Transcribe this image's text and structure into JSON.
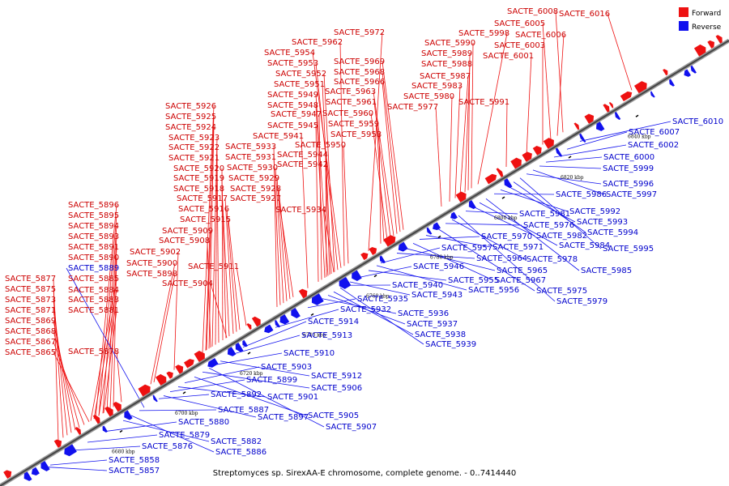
{
  "caption": "Streptomyces sp. SirexAA-E chromosome, complete genome. - 0..7414440",
  "legend": {
    "forward": {
      "label": "Forward",
      "color": "#ee1111"
    },
    "reverse": {
      "label": "Reverse",
      "color": "#1111ee"
    }
  },
  "scale_ticks": [
    "6680 kbp",
    "6700 kbp",
    "6720 kbp",
    "6740 kbp",
    "6760 kbp",
    "6780 kbp",
    "6800 kbp",
    "6820 kbp",
    "6840 kbp"
  ],
  "forward_genes": [
    "SACTE_5865",
    "SACTE_5867",
    "SACTE_5868",
    "SACTE_5869",
    "SACTE_5871",
    "SACTE_5873",
    "SACTE_5875",
    "SACTE_5877",
    "SACTE_5878",
    "SACTE_5881",
    "SACTE_5883",
    "SACTE_5884",
    "SACTE_5885",
    "SACTE_5890",
    "SACTE_5891",
    "SACTE_5893",
    "SACTE_5894",
    "SACTE_5895",
    "SACTE_5896",
    "SACTE_5898",
    "SACTE_5900",
    "SACTE_5902",
    "SACTE_5904",
    "SACTE_5908",
    "SACTE_5909",
    "SACTE_5911",
    "SACTE_5915",
    "SACTE_5916",
    "SACTE_5917",
    "SACTE_5918",
    "SACTE_5919",
    "SACTE_5920",
    "SACTE_5921",
    "SACTE_5922",
    "SACTE_5923",
    "SACTE_5924",
    "SACTE_5925",
    "SACTE_5926",
    "SACTE_5927",
    "SACTE_5928",
    "SACTE_5929",
    "SACTE_5930",
    "SACTE_5931",
    "SACTE_5933",
    "SACTE_5934",
    "SACTE_5941",
    "SACTE_5942",
    "SACTE_5944",
    "SACTE_5945",
    "SACTE_5947",
    "SACTE_5948",
    "SACTE_5949",
    "SACTE_5950",
    "SACTE_5951",
    "SACTE_5952",
    "SACTE_5953",
    "SACTE_5954",
    "SACTE_5958",
    "SACTE_5959",
    "SACTE_5960",
    "SACTE_5961",
    "SACTE_5962",
    "SACTE_5963",
    "SACTE_5966",
    "SACTE_5968",
    "SACTE_5969",
    "SACTE_5972",
    "SACTE_5977",
    "SACTE_5980",
    "SACTE_5983",
    "SACTE_5987",
    "SACTE_5988",
    "SACTE_5989",
    "SACTE_5990",
    "SACTE_5991",
    "SACTE_5998",
    "SACTE_6001",
    "SACTE_6003",
    "SACTE_6005",
    "SACTE_6006",
    "SACTE_6008",
    "SACTE_6016"
  ],
  "reverse_genes": [
    "SACTE_5857",
    "SACTE_5858",
    "SACTE_5876",
    "SACTE_5879",
    "SACTE_5880",
    "SACTE_5882",
    "SACTE_5886",
    "SACTE_5887",
    "SACTE_5889",
    "SACTE_5892",
    "SACTE_5897",
    "SACTE_5899",
    "SACTE_5901",
    "SACTE_5903",
    "SACTE_5905",
    "SACTE_5906",
    "SACTE_5907",
    "SACTE_5910",
    "SACTE_5912",
    "SACTE_5913",
    "SACTE_5914",
    "SACTE_5932",
    "SACTE_5935",
    "SACTE_5936",
    "SACTE_5937",
    "SACTE_5938",
    "SACTE_5939",
    "SACTE_5940",
    "SACTE_5943",
    "SACTE_5946",
    "SACTE_5955",
    "SACTE_5956",
    "SACTE_5957",
    "SACTE_5964",
    "SACTE_5965",
    "SACTE_5967",
    "SACTE_5970",
    "SACTE_5971",
    "SACTE_5975",
    "SACTE_5976",
    "SACTE_5978",
    "SACTE_5979",
    "SACTE_5981",
    "SACTE_5982",
    "SACTE_5984",
    "SACTE_5985",
    "SACTE_5986",
    "SACTE_5992",
    "SACTE_5993",
    "SACTE_5994",
    "SACTE_5995",
    "SACTE_5996",
    "SACTE_5997",
    "SACTE_5999",
    "SACTE_6000",
    "SACTE_6002",
    "SACTE_6007",
    "SACTE_6010"
  ]
}
